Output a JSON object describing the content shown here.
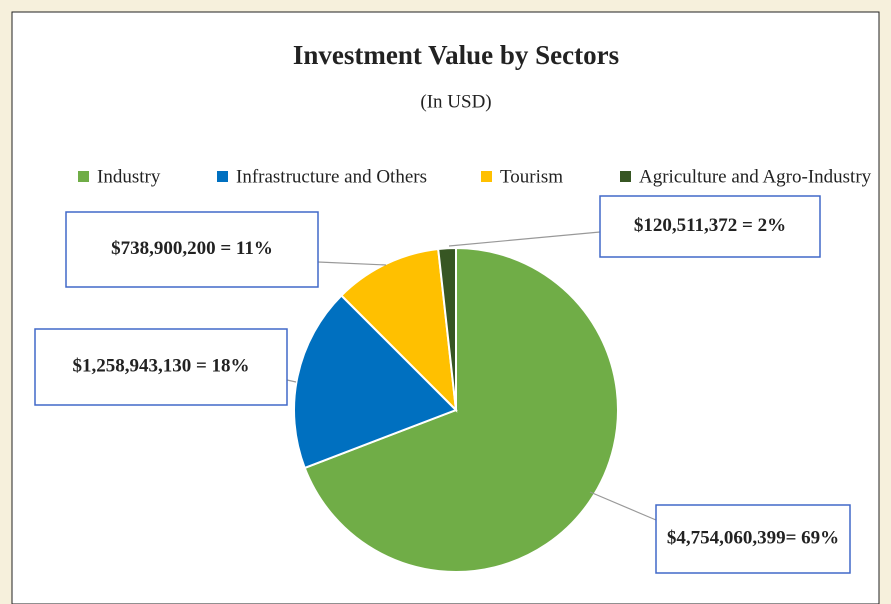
{
  "chart_data": {
    "type": "pie",
    "title": "Investment Value by Sectors",
    "subtitle": "(In USD)",
    "categories": [
      "Industry",
      "Infrastructure and Others",
      "Tourism",
      "Agriculture and Agro-Industry"
    ],
    "values": [
      4754060399,
      1258943130,
      738900200,
      120511372
    ],
    "value_labels": [
      "$4,754,060,399= 69%",
      "$1,258,943,130 = 18%",
      "$738,900,200 = 11%",
      "$120,511,372 = 2%"
    ],
    "colors": [
      "#70ad47",
      "#0070c0",
      "#ffc000",
      "#375623"
    ],
    "legend": "top"
  }
}
